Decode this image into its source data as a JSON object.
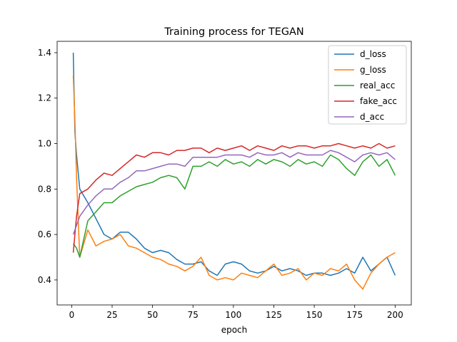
{
  "chart_data": {
    "type": "line",
    "title": "Training process for TEGAN",
    "xlabel": "epoch",
    "ylabel": "",
    "xlim": [
      -9,
      210
    ],
    "ylim": [
      0.29,
      1.45
    ],
    "xticks": [
      0,
      25,
      50,
      75,
      100,
      125,
      150,
      175,
      200
    ],
    "yticks": [
      0.4,
      0.6,
      0.8,
      1.0,
      1.2,
      1.4
    ],
    "ytick_labels": [
      "0.4",
      "0.6",
      "0.8",
      "1.0",
      "1.2",
      "1.4"
    ],
    "grid": false,
    "legend_position": "upper-right",
    "x_step": 5,
    "series": [
      {
        "name": "d_loss",
        "color": "#1f77b4",
        "x": [
          1,
          2,
          3,
          5,
          10,
          15,
          20,
          25,
          30,
          35,
          40,
          45,
          50,
          55,
          60,
          65,
          70,
          75,
          80,
          85,
          90,
          95,
          100,
          105,
          110,
          115,
          120,
          125,
          130,
          135,
          140,
          145,
          150,
          155,
          160,
          165,
          170,
          175,
          180,
          185,
          190,
          195,
          200
        ],
        "values": [
          1.4,
          1.05,
          0.95,
          0.8,
          0.74,
          0.67,
          0.6,
          0.58,
          0.61,
          0.61,
          0.58,
          0.54,
          0.52,
          0.53,
          0.52,
          0.49,
          0.47,
          0.47,
          0.48,
          0.44,
          0.42,
          0.47,
          0.48,
          0.47,
          0.44,
          0.43,
          0.44,
          0.46,
          0.44,
          0.45,
          0.44,
          0.42,
          0.43,
          0.43,
          0.42,
          0.43,
          0.45,
          0.43,
          0.5,
          0.44,
          0.47,
          0.5,
          0.42
        ]
      },
      {
        "name": "g_loss",
        "color": "#ff7f0e",
        "x": [
          1,
          2,
          3,
          5,
          10,
          15,
          20,
          25,
          30,
          35,
          40,
          45,
          50,
          55,
          60,
          65,
          70,
          75,
          80,
          85,
          90,
          95,
          100,
          105,
          110,
          115,
          120,
          125,
          130,
          135,
          140,
          145,
          150,
          155,
          160,
          165,
          170,
          175,
          180,
          185,
          190,
          195,
          200
        ],
        "values": [
          1.3,
          1.1,
          0.85,
          0.5,
          0.62,
          0.55,
          0.57,
          0.58,
          0.6,
          0.55,
          0.54,
          0.52,
          0.5,
          0.49,
          0.47,
          0.46,
          0.44,
          0.46,
          0.5,
          0.42,
          0.4,
          0.41,
          0.4,
          0.43,
          0.42,
          0.41,
          0.44,
          0.47,
          0.42,
          0.43,
          0.45,
          0.4,
          0.43,
          0.42,
          0.45,
          0.44,
          0.47,
          0.4,
          0.36,
          0.43,
          0.47,
          0.5,
          0.52
        ]
      },
      {
        "name": "real_acc",
        "color": "#2ca02c",
        "x": [
          1,
          2,
          3,
          5,
          10,
          15,
          20,
          25,
          30,
          35,
          40,
          45,
          50,
          55,
          60,
          65,
          70,
          75,
          80,
          85,
          90,
          95,
          100,
          105,
          110,
          115,
          120,
          125,
          130,
          135,
          140,
          145,
          150,
          155,
          160,
          165,
          170,
          175,
          180,
          185,
          190,
          195,
          200
        ],
        "values": [
          0.56,
          0.55,
          0.54,
          0.5,
          0.66,
          0.7,
          0.74,
          0.74,
          0.77,
          0.79,
          0.81,
          0.82,
          0.83,
          0.85,
          0.86,
          0.85,
          0.8,
          0.9,
          0.9,
          0.92,
          0.9,
          0.93,
          0.91,
          0.92,
          0.9,
          0.93,
          0.91,
          0.93,
          0.92,
          0.9,
          0.93,
          0.91,
          0.92,
          0.9,
          0.95,
          0.93,
          0.89,
          0.86,
          0.92,
          0.95,
          0.9,
          0.93,
          0.86
        ]
      },
      {
        "name": "fake_acc",
        "color": "#d62728",
        "x": [
          1,
          2,
          3,
          5,
          10,
          15,
          20,
          25,
          30,
          35,
          40,
          45,
          50,
          55,
          60,
          65,
          70,
          75,
          80,
          85,
          90,
          95,
          100,
          105,
          110,
          115,
          120,
          125,
          130,
          135,
          140,
          145,
          150,
          155,
          160,
          165,
          170,
          175,
          180,
          185,
          190,
          195,
          200
        ],
        "values": [
          0.52,
          0.6,
          0.68,
          0.78,
          0.8,
          0.84,
          0.87,
          0.86,
          0.89,
          0.92,
          0.95,
          0.94,
          0.96,
          0.96,
          0.95,
          0.97,
          0.97,
          0.98,
          0.98,
          0.96,
          0.98,
          0.97,
          0.98,
          0.99,
          0.97,
          0.99,
          0.98,
          0.97,
          0.99,
          0.98,
          0.99,
          0.99,
          0.98,
          0.99,
          0.99,
          1.0,
          0.99,
          0.98,
          0.99,
          0.98,
          1.0,
          0.98,
          0.99
        ]
      },
      {
        "name": "d_acc",
        "color": "#9467bd",
        "x": [
          1,
          2,
          3,
          5,
          10,
          15,
          20,
          25,
          30,
          35,
          40,
          45,
          50,
          55,
          60,
          65,
          70,
          75,
          80,
          85,
          90,
          95,
          100,
          105,
          110,
          115,
          120,
          125,
          130,
          135,
          140,
          145,
          150,
          155,
          160,
          165,
          170,
          175,
          180,
          185,
          190,
          195,
          200
        ],
        "values": [
          0.6,
          0.62,
          0.64,
          0.68,
          0.73,
          0.77,
          0.8,
          0.8,
          0.83,
          0.85,
          0.88,
          0.88,
          0.89,
          0.9,
          0.91,
          0.91,
          0.9,
          0.94,
          0.94,
          0.94,
          0.94,
          0.95,
          0.95,
          0.95,
          0.94,
          0.96,
          0.95,
          0.95,
          0.96,
          0.94,
          0.96,
          0.95,
          0.95,
          0.95,
          0.97,
          0.96,
          0.94,
          0.92,
          0.95,
          0.96,
          0.95,
          0.96,
          0.93
        ]
      }
    ]
  }
}
